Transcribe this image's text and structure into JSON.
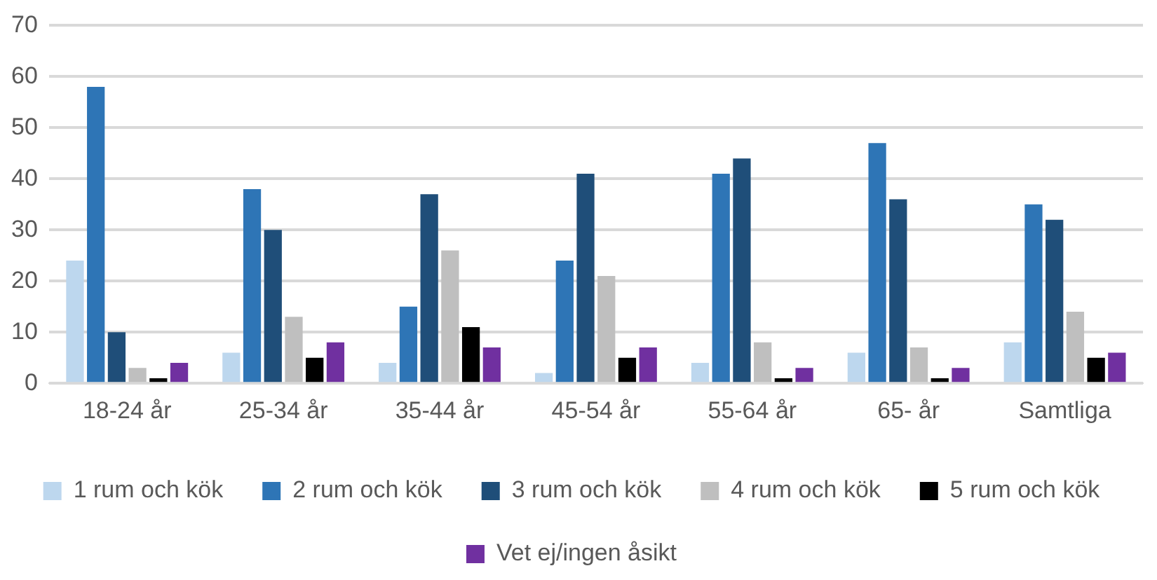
{
  "chart_data": {
    "type": "bar",
    "categories": [
      "18-24 år",
      "25-34 år",
      "35-44 år",
      "45-54 år",
      "55-64 år",
      "65- år",
      "Samtliga"
    ],
    "series": [
      {
        "name": "1 rum och kök",
        "color": "#bdd7ee",
        "values": [
          24,
          6,
          4,
          2,
          4,
          6,
          8
        ]
      },
      {
        "name": "2 rum och kök",
        "color": "#2e75b6",
        "values": [
          58,
          38,
          15,
          24,
          41,
          47,
          35
        ]
      },
      {
        "name": "3 rum och kök",
        "color": "#1f4e79",
        "values": [
          10,
          30,
          37,
          41,
          44,
          36,
          32
        ]
      },
      {
        "name": "4 rum och kök",
        "color": "#bfbfbf",
        "values": [
          3,
          13,
          26,
          21,
          8,
          7,
          14
        ]
      },
      {
        "name": "5 rum och kök",
        "color": "#000000",
        "values": [
          1,
          5,
          11,
          5,
          1,
          1,
          5
        ]
      },
      {
        "name": "Vet ej/ingen åsikt",
        "color": "#7030a0",
        "values": [
          4,
          8,
          7,
          7,
          3,
          3,
          6
        ]
      }
    ],
    "ylim": [
      0,
      70
    ],
    "yticks": [
      0,
      10,
      20,
      30,
      40,
      50,
      60,
      70
    ],
    "grid": "y",
    "legend": "bottom"
  }
}
